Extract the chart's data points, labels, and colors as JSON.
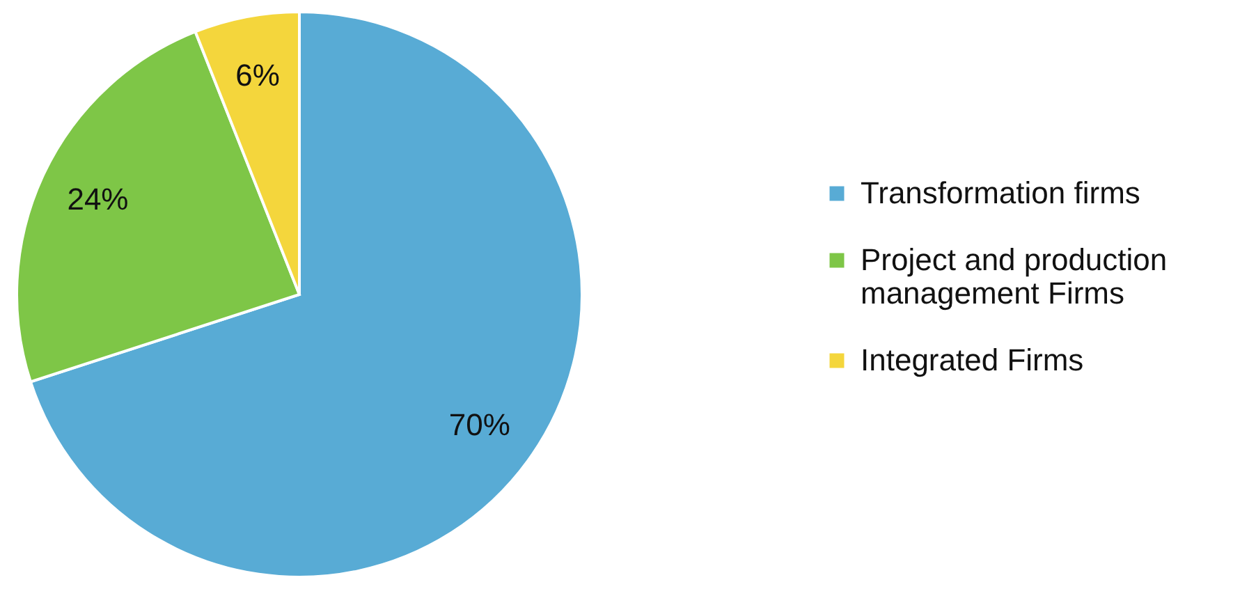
{
  "chart_data": {
    "type": "pie",
    "categories": [
      "Transformation firms",
      "Project and production management Firms",
      "Integrated Firms"
    ],
    "values": [
      70,
      24,
      6
    ],
    "colors": [
      "#58abd5",
      "#7ec647",
      "#f4d63c"
    ],
    "value_labels": [
      "70%",
      "24%",
      "6%"
    ],
    "legend": "right"
  }
}
